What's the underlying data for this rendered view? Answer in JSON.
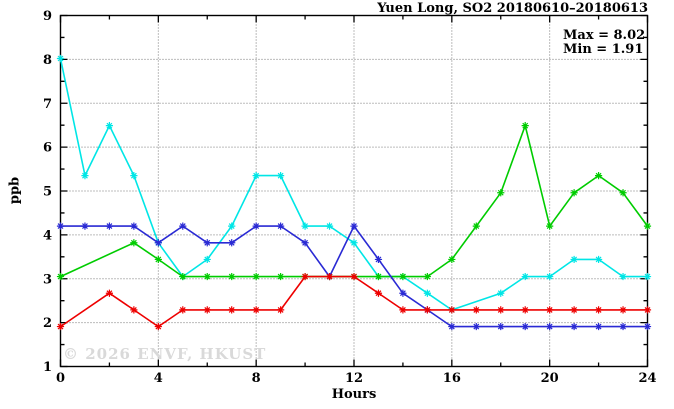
{
  "figure": {
    "title": "Yuen Long, SO2 20180610–20180613",
    "stats": {
      "max_label": "Max = 8.02",
      "min_label": "Min = 1.91"
    },
    "watermark": "© 2026 ENVF, HKUST"
  },
  "chart_data": {
    "type": "line",
    "title": "Yuen Long, SO2 20180610–20180613",
    "xlabel": "Hours",
    "ylabel": "ppb",
    "xlim": [
      0,
      24
    ],
    "ylim": [
      1,
      9
    ],
    "xticks": [
      0,
      4,
      8,
      12,
      16,
      20,
      24
    ],
    "xticks_minor": [
      2,
      6,
      10,
      14,
      18,
      22
    ],
    "yticks": [
      1,
      2,
      3,
      4,
      5,
      6,
      7,
      8,
      9
    ],
    "yticks_minor": [
      1.5,
      2.5,
      3.5,
      4.5,
      5.5,
      6.5,
      7.5,
      8.5
    ],
    "grid": true,
    "legend_position": "none",
    "max": 8.02,
    "min": 1.91,
    "marker": "asterisk",
    "x": [
      0,
      1,
      2,
      3,
      4,
      5,
      6,
      7,
      8,
      9,
      10,
      11,
      12,
      13,
      14,
      15,
      16,
      17,
      18,
      19,
      20,
      21,
      22,
      23,
      24
    ],
    "series": [
      {
        "name": "cyan",
        "color": "#00e6e6",
        "values": [
          8.02,
          5.35,
          6.49,
          5.35,
          3.82,
          3.05,
          3.44,
          4.2,
          5.35,
          5.35,
          4.2,
          4.2,
          3.82,
          3.05,
          3.05,
          2.67,
          2.29,
          null,
          2.67,
          3.05,
          3.05,
          3.44,
          3.44,
          3.05,
          3.05
        ]
      },
      {
        "name": "green",
        "color": "#00cc00",
        "values": [
          3.05,
          null,
          null,
          3.82,
          3.44,
          3.05,
          3.05,
          3.05,
          3.05,
          3.05,
          3.05,
          3.05,
          3.05,
          3.05,
          3.05,
          3.05,
          3.44,
          4.2,
          4.96,
          6.49,
          4.2,
          4.96,
          5.35,
          4.96,
          4.2
        ]
      },
      {
        "name": "blue",
        "color": "#2a2ad4",
        "values": [
          4.2,
          4.2,
          4.2,
          4.2,
          3.82,
          4.2,
          3.82,
          3.82,
          4.2,
          4.2,
          3.82,
          3.05,
          4.2,
          3.44,
          2.67,
          2.29,
          1.91,
          1.91,
          1.91,
          1.91,
          1.91,
          1.91,
          1.91,
          1.91,
          1.91
        ]
      },
      {
        "name": "red",
        "color": "#ee0000",
        "values": [
          1.91,
          null,
          2.67,
          2.29,
          1.91,
          2.29,
          2.29,
          2.29,
          2.29,
          2.29,
          3.05,
          3.05,
          3.05,
          2.67,
          2.29,
          2.29,
          2.29,
          2.29,
          2.29,
          2.29,
          2.29,
          2.29,
          2.29,
          2.29,
          2.29
        ]
      }
    ],
    "colors": {
      "grid": "#7a7a7a",
      "axis": "#000000",
      "background": "#ffffff",
      "watermark": "#d9d9d9"
    }
  }
}
